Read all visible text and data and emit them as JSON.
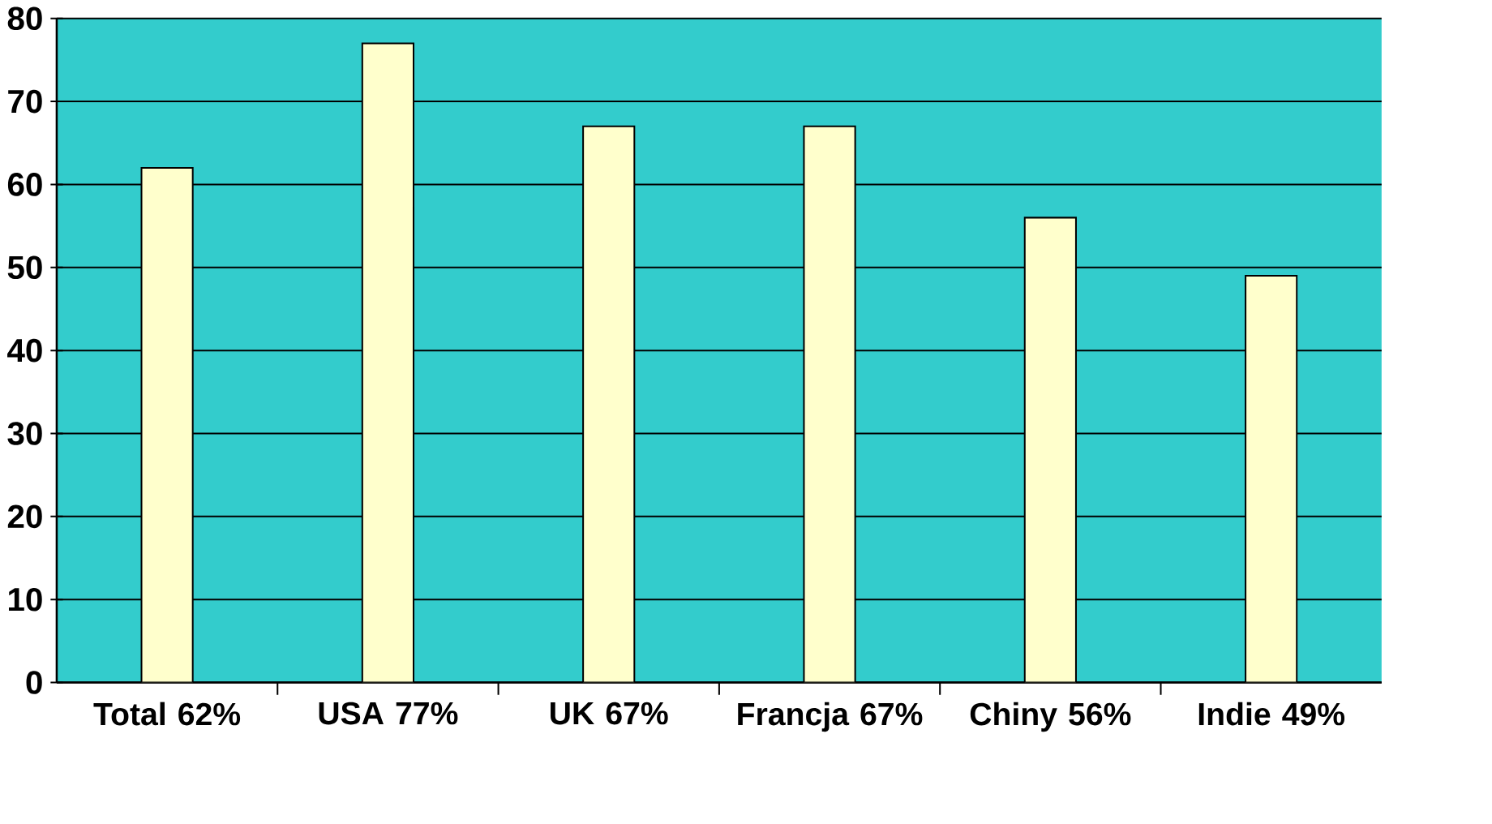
{
  "chart_data": {
    "type": "bar",
    "categories": [
      "Total 62%",
      "USA 77%",
      "UK 67%",
      "Francja 67%",
      "Chiny 56%",
      "Indie 49%"
    ],
    "values": [
      62,
      77,
      67,
      67,
      56,
      49
    ],
    "color": "#ffffcc",
    "ylim": [
      0,
      80
    ],
    "yticks": [
      0,
      10,
      20,
      30,
      40,
      50,
      60,
      70,
      80
    ],
    "grid": "y"
  }
}
